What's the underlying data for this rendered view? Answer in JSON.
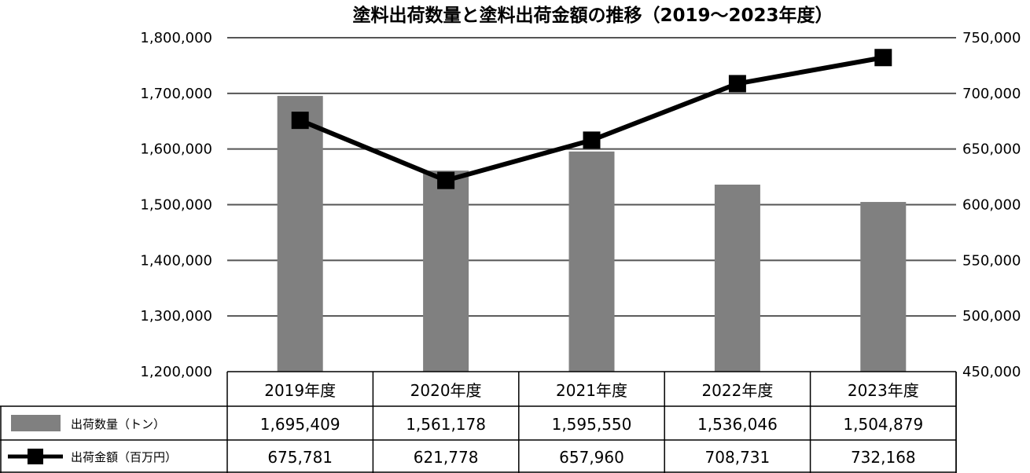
{
  "chart_data": {
    "type": "bar",
    "title": "塗料出荷数量と塗料出荷金額の推移（2019～2023年度）",
    "categories": [
      "2019年度",
      "2020年度",
      "2021年度",
      "2022年度",
      "2023年度"
    ],
    "series": [
      {
        "name": "出荷数量（トン）",
        "type": "bar",
        "axis": "left",
        "values": [
          1695409,
          1561178,
          1595550,
          1536046,
          1504879
        ],
        "value_labels": [
          "1,695,409",
          "1,561,178",
          "1,595,550",
          "1,536,046",
          "1,504,879"
        ],
        "color": "#808080"
      },
      {
        "name": "出荷金額（百万円）",
        "type": "line",
        "axis": "right",
        "values": [
          675781,
          621778,
          657960,
          708731,
          732168
        ],
        "value_labels": [
          "675,781",
          "621,778",
          "657,960",
          "708,731",
          "732,168"
        ],
        "color": "#000000"
      }
    ],
    "left_axis": {
      "range": [
        1200000,
        1800000
      ],
      "ticks": [
        1800000,
        1700000,
        1600000,
        1500000,
        1400000,
        1300000,
        1200000
      ],
      "tick_labels": [
        "1,800,000",
        "1,700,000",
        "1,600,000",
        "1,500,000",
        "1,400,000",
        "1,300,000",
        "1,200,000"
      ]
    },
    "right_axis": {
      "range": [
        450000,
        750000
      ],
      "ticks": [
        750000,
        700000,
        650000,
        600000,
        550000,
        500000,
        450000
      ],
      "tick_labels": [
        "750,000",
        "700,000",
        "650,000",
        "600,000",
        "550,000",
        "500,000",
        "450,000"
      ]
    },
    "grid": true,
    "legend": "data-table"
  }
}
